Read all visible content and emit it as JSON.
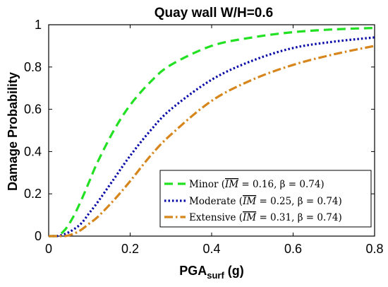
{
  "chart_data": {
    "type": "line",
    "title": "Quay wall W/H=0.6",
    "xlabel_main": "PGA",
    "xlabel_sub": "surf",
    "xlabel_unit": " (g)",
    "ylabel": "Damage Probability",
    "xlim": [
      0,
      0.8
    ],
    "ylim": [
      0,
      1
    ],
    "xticks": [
      0,
      0.2,
      0.4,
      0.6,
      0.8
    ],
    "xtick_labels": [
      "0",
      "0.2",
      "0.4",
      "0.6",
      "0.8"
    ],
    "yticks": [
      0,
      0.2,
      0.4,
      0.6,
      0.8,
      1
    ],
    "ytick_labels": [
      "0",
      "0.2",
      "0.4",
      "0.6",
      "0.8",
      "1"
    ],
    "grid": false,
    "legend_position": "bottom-right",
    "series": [
      {
        "name": "Minor",
        "legend_parts": [
          "Minor (",
          "IM",
          " = 0.16, β = 0.74)"
        ],
        "median": 0.16,
        "beta": 0.74,
        "color": "#22e022",
        "dash": "12,7",
        "x": [
          0,
          0.02,
          0.04,
          0.06,
          0.08,
          0.1,
          0.12,
          0.16,
          0.2,
          0.25,
          0.3,
          0.4,
          0.5,
          0.6,
          0.7,
          0.8
        ],
        "y": [
          0,
          0.0,
          0.03,
          0.09,
          0.17,
          0.26,
          0.35,
          0.5,
          0.62,
          0.73,
          0.81,
          0.9,
          0.94,
          0.965,
          0.978,
          0.985
        ]
      },
      {
        "name": "Moderate",
        "legend_parts": [
          "Moderate (",
          "IM",
          " = 0.25, β = 0.74)"
        ],
        "median": 0.25,
        "beta": 0.74,
        "color": "#0a0aa8",
        "dash": "2.5,3",
        "x": [
          0,
          0.02,
          0.04,
          0.06,
          0.08,
          0.1,
          0.12,
          0.16,
          0.2,
          0.25,
          0.3,
          0.4,
          0.5,
          0.6,
          0.7,
          0.8
        ],
        "y": [
          0,
          0.0,
          0.01,
          0.03,
          0.06,
          0.11,
          0.16,
          0.27,
          0.38,
          0.5,
          0.6,
          0.74,
          0.83,
          0.89,
          0.92,
          0.94
        ]
      },
      {
        "name": "Extensive",
        "legend_parts": [
          "Extensive (",
          "IM",
          " = 0.31, β = 0.74)"
        ],
        "median": 0.31,
        "beta": 0.74,
        "color": "#d6861c",
        "dash": "12,4,2.5,4",
        "x": [
          0,
          0.02,
          0.04,
          0.06,
          0.08,
          0.1,
          0.12,
          0.16,
          0.2,
          0.25,
          0.3,
          0.4,
          0.5,
          0.6,
          0.7,
          0.8
        ],
        "y": [
          0,
          0.0,
          0.0,
          0.01,
          0.03,
          0.06,
          0.09,
          0.17,
          0.26,
          0.38,
          0.48,
          0.64,
          0.74,
          0.81,
          0.86,
          0.9
        ]
      }
    ]
  }
}
